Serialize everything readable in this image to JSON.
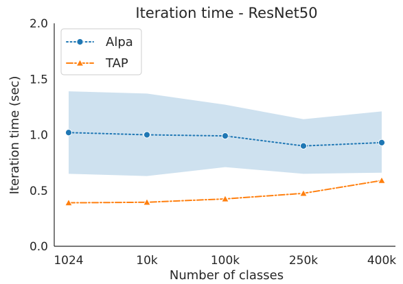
{
  "chart_data": {
    "type": "line",
    "title": "Iteration time - ResNet50",
    "xlabel": "Number of classes",
    "ylabel": "Iteration time (sec)",
    "categories": [
      "1024",
      "10k",
      "100k",
      "250k",
      "400k"
    ],
    "ylim": [
      0.0,
      2.0
    ],
    "yticks": [
      "0.0",
      "0.5",
      "1.0",
      "1.5",
      "2.0"
    ],
    "grid": false,
    "legend_position": "top-left",
    "series": [
      {
        "name": "Alpa",
        "values": [
          1.02,
          1.0,
          0.99,
          0.9,
          0.93
        ],
        "band_low": [
          0.65,
          0.63,
          0.71,
          0.65,
          0.66
        ],
        "band_high": [
          1.39,
          1.37,
          1.27,
          1.14,
          1.21
        ],
        "color": "#1f77b4",
        "band_color": "#c6dcec",
        "marker": "circle",
        "line_style": "dotted"
      },
      {
        "name": "TAP",
        "values": [
          0.39,
          0.395,
          0.425,
          0.475,
          0.59
        ],
        "color": "#ff7f0e",
        "marker": "triangle",
        "line_style": "dash-dot"
      }
    ]
  }
}
